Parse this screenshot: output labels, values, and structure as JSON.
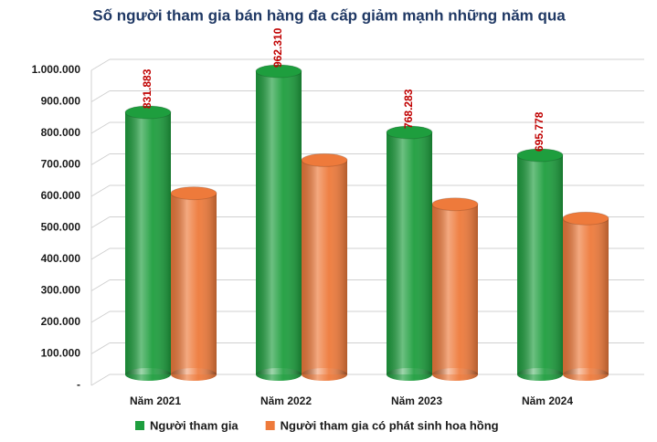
{
  "chart_data": {
    "type": "bar3d",
    "title": "Số người tham gia bán hàng đa cấp giảm mạnh những năm qua",
    "categories": [
      "Năm 2021",
      "Năm 2022",
      "Năm 2023",
      "Năm 2024"
    ],
    "series": [
      {
        "name": "Người tham gia",
        "color": "#1e9e3e",
        "values": [
          831883,
          962310,
          768283,
          695778
        ],
        "value_labels": [
          "831.883",
          "962.310",
          "768.283",
          "695.778"
        ]
      },
      {
        "name": "Người tham gia có phát sinh hoa hồng",
        "color": "#ee7a3b",
        "values": [
          575000,
          680000,
          540000,
          495000
        ]
      }
    ],
    "ylim": [
      0,
      1000000
    ],
    "yticks": [
      {
        "value": 0,
        "label": "-"
      },
      {
        "value": 100000,
        "label": "100.000"
      },
      {
        "value": 200000,
        "label": "200.000"
      },
      {
        "value": 300000,
        "label": "300.000"
      },
      {
        "value": 400000,
        "label": "400.000"
      },
      {
        "value": 500000,
        "label": "500.000"
      },
      {
        "value": 600000,
        "label": "600.000"
      },
      {
        "value": 700000,
        "label": "700.000"
      },
      {
        "value": 800000,
        "label": "800.000"
      },
      {
        "value": 900000,
        "label": "900.000"
      },
      {
        "value": 1000000,
        "label": "1.000.000"
      }
    ],
    "grid": true
  }
}
